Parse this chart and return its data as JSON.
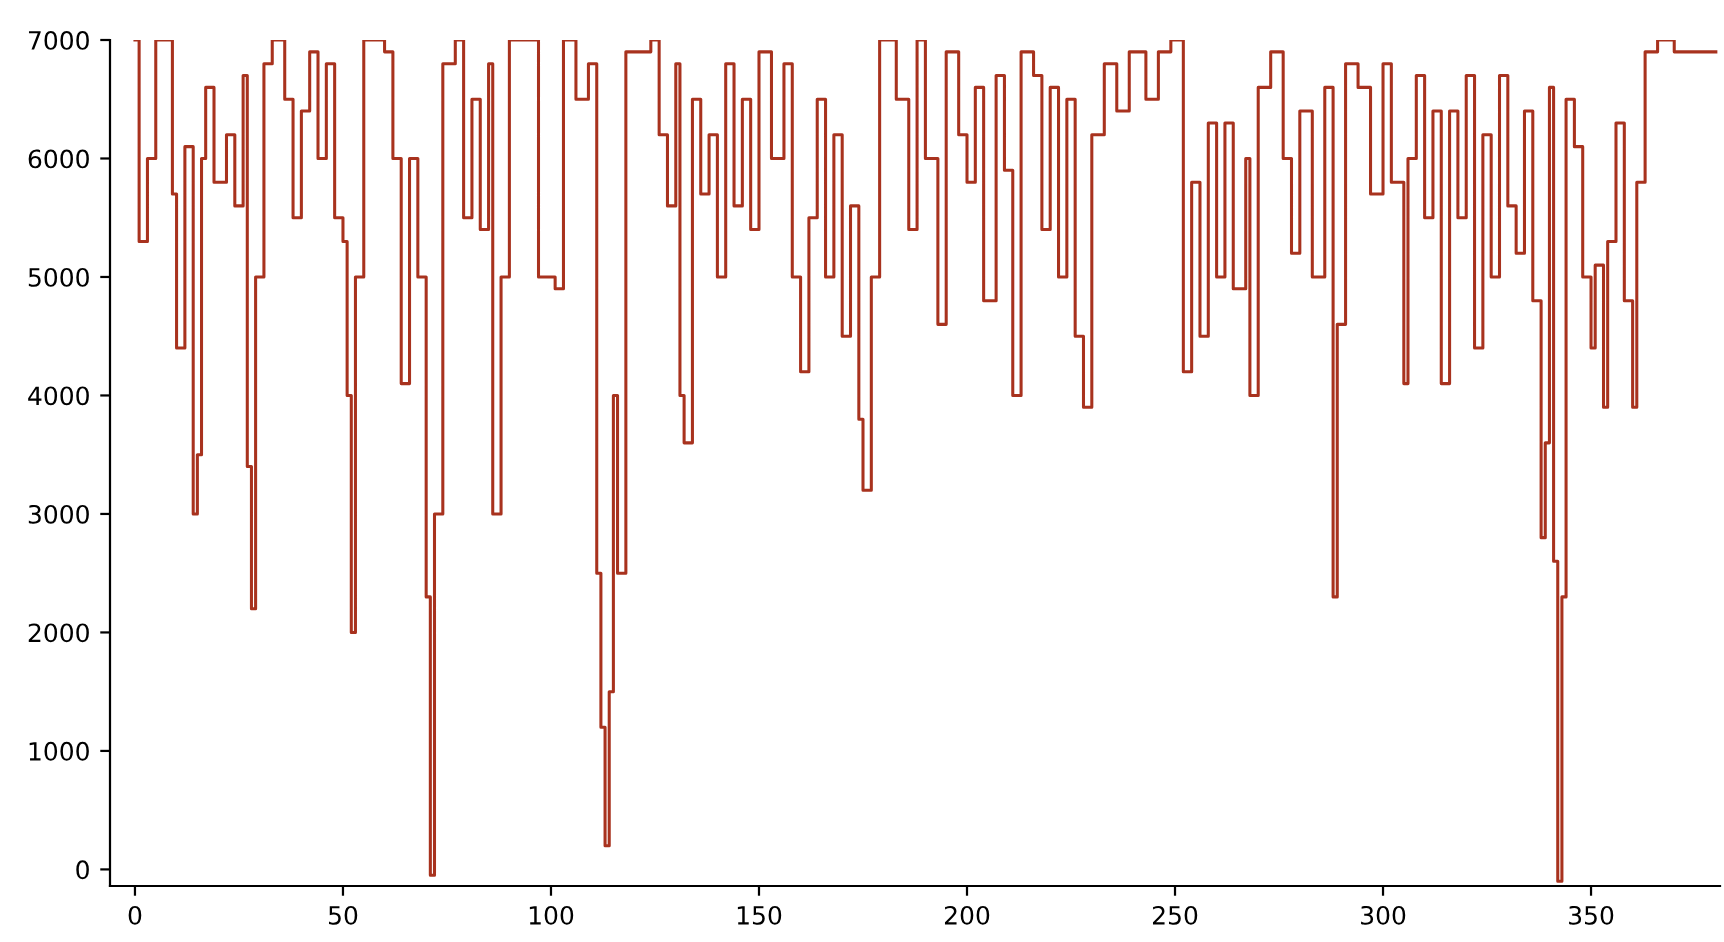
{
  "chart_data": {
    "type": "step",
    "xlim": [
      -6,
      381
    ],
    "ylim": [
      -140,
      7000
    ],
    "xticks": [
      0,
      50,
      100,
      150,
      200,
      250,
      300,
      350
    ],
    "yticks": [
      0,
      1000,
      2000,
      3000,
      4000,
      5000,
      6000,
      7000
    ],
    "grid": false,
    "legend": false,
    "marker": "none",
    "line_style": "solid",
    "series": [
      {
        "color": "#a8321e",
        "x": [
          0,
          1,
          3,
          5,
          8,
          9,
          10,
          12,
          14,
          15,
          16,
          17,
          19,
          22,
          24,
          26,
          27,
          28,
          29,
          31,
          33,
          36,
          38,
          40,
          42,
          44,
          46,
          48,
          50,
          51,
          52,
          53,
          55,
          60,
          62,
          64,
          66,
          68,
          70,
          71,
          72,
          74,
          77,
          79,
          81,
          83,
          85,
          86,
          88,
          90,
          95,
          97,
          101,
          103,
          106,
          109,
          111,
          112,
          113,
          114,
          115,
          116,
          118,
          121,
          124,
          126,
          128,
          130,
          131,
          132,
          134,
          136,
          138,
          140,
          142,
          144,
          146,
          148,
          150,
          153,
          156,
          158,
          160,
          162,
          164,
          166,
          168,
          170,
          172,
          174,
          175,
          177,
          179,
          183,
          186,
          188,
          190,
          193,
          195,
          198,
          200,
          202,
          204,
          207,
          209,
          211,
          213,
          216,
          218,
          220,
          222,
          224,
          226,
          228,
          230,
          233,
          236,
          239,
          243,
          246,
          249,
          252,
          254,
          256,
          258,
          260,
          262,
          264,
          267,
          268,
          270,
          273,
          276,
          278,
          280,
          283,
          286,
          288,
          289,
          291,
          294,
          297,
          300,
          302,
          305,
          306,
          308,
          310,
          312,
          314,
          316,
          318,
          320,
          322,
          324,
          326,
          328,
          330,
          332,
          334,
          336,
          338,
          339,
          340,
          341,
          342,
          343,
          344,
          346,
          348,
          350,
          351,
          353,
          354,
          356,
          358,
          360,
          361,
          363,
          366,
          370,
          380
        ],
        "values": [
          7000,
          5300,
          6000,
          7000,
          7000,
          5700,
          4400,
          6100,
          3000,
          3500,
          6000,
          6600,
          5800,
          6200,
          5600,
          6700,
          3400,
          2200,
          5000,
          6800,
          7000,
          6500,
          5500,
          6400,
          6900,
          6000,
          6800,
          5500,
          5300,
          4000,
          2000,
          5000,
          7000,
          6900,
          6000,
          4100,
          6000,
          5000,
          2300,
          -50,
          3000,
          6800,
          7000,
          5500,
          6500,
          5400,
          6800,
          3000,
          5000,
          7000,
          7000,
          5000,
          4900,
          7000,
          6500,
          6800,
          2500,
          1200,
          200,
          1500,
          4000,
          2500,
          6900,
          6900,
          7000,
          6200,
          5600,
          6800,
          4000,
          3600,
          6500,
          5700,
          6200,
          5000,
          6800,
          5600,
          6500,
          5400,
          6900,
          6000,
          6800,
          5000,
          4200,
          5500,
          6500,
          5000,
          6200,
          4500,
          5600,
          3800,
          3200,
          5000,
          7000,
          6500,
          5400,
          7000,
          6000,
          4600,
          6900,
          6200,
          5800,
          6600,
          4800,
          6700,
          5900,
          4000,
          6900,
          6700,
          5400,
          6600,
          5000,
          6500,
          4500,
          3900,
          6200,
          6800,
          6400,
          6900,
          6500,
          6900,
          7000,
          4200,
          5800,
          4500,
          6300,
          5000,
          6300,
          4900,
          6000,
          4000,
          6600,
          6900,
          6000,
          5200,
          6400,
          5000,
          6600,
          2300,
          4600,
          6800,
          6600,
          5700,
          6800,
          5800,
          4100,
          6000,
          6700,
          5500,
          6400,
          4100,
          6400,
          5500,
          6700,
          4400,
          6200,
          5000,
          6700,
          5600,
          5200,
          6400,
          4800,
          2800,
          3600,
          6600,
          2600,
          -100,
          2300,
          6500,
          6100,
          5000,
          4400,
          5100,
          3900,
          5300,
          6300,
          4800,
          3900,
          5800,
          6900,
          7000,
          6900,
          6900
        ]
      }
    ]
  }
}
